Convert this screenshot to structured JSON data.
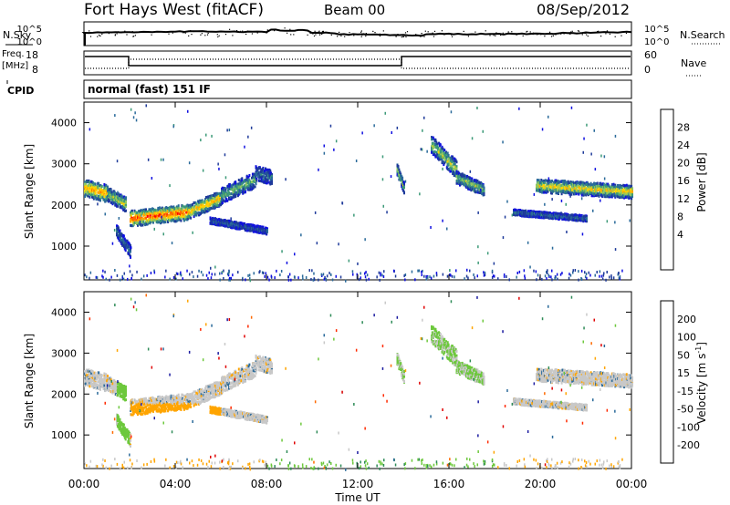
{
  "header": {
    "title": "Fort Hays West (fitACF)",
    "beam": "Beam 00",
    "date": "08/Sep/2012"
  },
  "strips": {
    "nsky_label": "N.Sky",
    "nsearch_label": "N.Search",
    "nsky_ticks": [
      "10^5",
      "10^0"
    ],
    "nsearch_ticks": [
      "10^5",
      "10^0"
    ],
    "freq_label": "Freq.",
    "freq_unit": "[MHz]",
    "freq_ticks": [
      "18",
      "8"
    ],
    "nave_label": "Nave",
    "nave_ticks": [
      "60",
      "0"
    ],
    "cpid_label": "CPID",
    "cpid_text": "normal (fast) 151 IF"
  },
  "chart_data": [
    {
      "type": "heatmap",
      "name": "power",
      "ylabel": "Slant Range [km]",
      "y_ticks": [
        "4000",
        "3000",
        "2000",
        "1000"
      ],
      "x_ticks": [
        "00:00",
        "04:00",
        "08:00",
        "12:00",
        "16:00",
        "20:00",
        "00:00"
      ],
      "xlim_hours": [
        0,
        24
      ],
      "ylim_km": [
        180,
        4500
      ],
      "colorbar": {
        "label": "Power [dB]",
        "ticks": [
          "28",
          "24",
          "20",
          "16",
          "12",
          "8",
          "4"
        ],
        "colors": [
          "#ff0000",
          "#ff6600",
          "#ffa500",
          "#ffd200",
          "#90c860",
          "#3c9a78",
          "#2a6a9a",
          "#1e3a9a",
          "#1010e0"
        ]
      }
    },
    {
      "type": "heatmap",
      "name": "velocity",
      "ylabel": "Slant Range [km]",
      "xlabel": "Time UT",
      "y_ticks": [
        "4000",
        "3000",
        "2000",
        "1000"
      ],
      "x_ticks": [
        "00:00",
        "04:00",
        "08:00",
        "12:00",
        "16:00",
        "20:00",
        "00:00"
      ],
      "xlim_hours": [
        0,
        24
      ],
      "ylim_km": [
        180,
        4500
      ],
      "colorbar": {
        "label": "Velocity [m s",
        "label_sup": "-1",
        "label_end": "]",
        "ticks": [
          "200",
          "100",
          "50",
          "15",
          "-15",
          "-50",
          "-100",
          "-200"
        ],
        "colors": [
          "#1a1aa0",
          "#2a6a9a",
          "#2e8b57",
          "#6dc83c",
          "#c8c8c8",
          "#ffa500",
          "#ff6a00",
          "#ff2a00",
          "#e00000"
        ]
      }
    }
  ]
}
